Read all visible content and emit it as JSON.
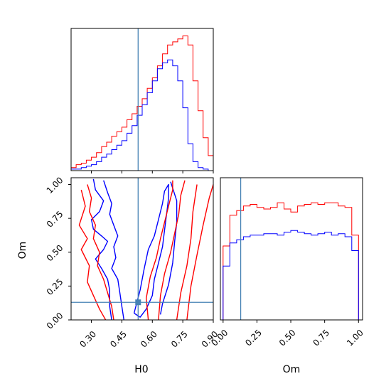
{
  "chart_data": {
    "type": "corner",
    "colors": {
      "red": "#ff0000",
      "blue": "#0000ff",
      "truth": "#4682b4"
    },
    "parameters": [
      "H0",
      "Om"
    ],
    "truth": {
      "H0": 0.53,
      "Om": 0.13
    },
    "panels": [
      {
        "id": "hist-H0",
        "type": "histogram-step",
        "xlim": [
          0.2,
          0.9
        ],
        "bin_edges": [
          0.2,
          0.225,
          0.25,
          0.275,
          0.3,
          0.325,
          0.35,
          0.375,
          0.4,
          0.425,
          0.45,
          0.475,
          0.5,
          0.525,
          0.55,
          0.575,
          0.6,
          0.625,
          0.65,
          0.675,
          0.7,
          0.725,
          0.75,
          0.775,
          0.8,
          0.825,
          0.85,
          0.875,
          0.9
        ],
        "series": [
          {
            "color": "red",
            "values": [
              2,
              4,
              5,
              7,
              9,
              12,
              16,
              19,
              23,
              26,
              29,
              34,
              38,
              43,
              48,
              55,
              62,
              70,
              78,
              84,
              86,
              88,
              90,
              84,
              60,
              40,
              22,
              10
            ]
          },
          {
            "color": "blue",
            "values": [
              1,
              1,
              2,
              3,
              4,
              6,
              9,
              11,
              14,
              17,
              20,
              25,
              30,
              37,
              44,
              52,
              60,
              68,
              72,
              74,
              70,
              60,
              42,
              18,
              6,
              2,
              1,
              0
            ]
          }
        ]
      },
      {
        "id": "hist-Om",
        "type": "histogram-step",
        "xlim": [
          0.0,
          1.0
        ],
        "bin_edges": [
          0.0,
          0.05,
          0.1,
          0.15,
          0.2,
          0.25,
          0.3,
          0.35,
          0.4,
          0.45,
          0.5,
          0.55,
          0.6,
          0.65,
          0.7,
          0.75,
          0.8,
          0.85,
          0.9,
          0.95,
          1.0
        ],
        "series": [
          {
            "color": "red",
            "values": [
              48,
              68,
              71,
              74,
              75,
              73,
              72,
              73,
              76,
              72,
              70,
              74,
              75,
              76,
              75,
              76,
              76,
              74,
              73,
              55
            ]
          },
          {
            "color": "blue",
            "values": [
              35,
              50,
              52,
              54,
              55,
              55,
              56,
              56,
              55,
              57,
              58,
              57,
              56,
              55,
              56,
              57,
              55,
              56,
              54,
              45
            ]
          }
        ]
      },
      {
        "id": "contour-H0-Om",
        "type": "contour",
        "xlabel": "H0",
        "ylabel": "Om",
        "xlim": [
          0.2,
          0.9
        ],
        "ylim": [
          0.0,
          1.05
        ],
        "xticks": [
          0.3,
          0.45,
          0.6,
          0.75,
          0.9
        ],
        "xtick_labels": [
          "0.30",
          "0.45",
          "0.60",
          "0.75",
          "0.90"
        ],
        "yticks": [
          0.0,
          0.25,
          0.5,
          0.75,
          1.0
        ],
        "ytick_labels": [
          "0.00",
          "0.25",
          "0.50",
          "0.75",
          "1.00"
        ],
        "contours": [
          {
            "color": "blue",
            "points": [
              [
                0.31,
                1.04
              ],
              [
                0.32,
                0.96
              ],
              [
                0.36,
                0.88
              ],
              [
                0.34,
                0.8
              ],
              [
                0.3,
                0.74
              ],
              [
                0.31,
                0.67
              ],
              [
                0.35,
                0.62
              ],
              [
                0.38,
                0.58
              ],
              [
                0.36,
                0.52
              ],
              [
                0.32,
                0.45
              ],
              [
                0.35,
                0.38
              ],
              [
                0.38,
                0.3
              ],
              [
                0.39,
                0.22
              ],
              [
                0.39,
                0.1
              ],
              [
                0.4,
                0.0
              ]
            ]
          },
          {
            "color": "blue",
            "points": [
              [
                0.36,
                1.03
              ],
              [
                0.38,
                0.94
              ],
              [
                0.4,
                0.86
              ],
              [
                0.39,
                0.78
              ],
              [
                0.41,
                0.7
              ],
              [
                0.43,
                0.62
              ],
              [
                0.41,
                0.54
              ],
              [
                0.42,
                0.46
              ],
              [
                0.4,
                0.38
              ],
              [
                0.43,
                0.3
              ],
              [
                0.44,
                0.2
              ],
              [
                0.45,
                0.1
              ],
              [
                0.46,
                0.0
              ]
            ]
          },
          {
            "color": "blue",
            "points": [
              [
                0.51,
                0.05
              ],
              [
                0.54,
                0.22
              ],
              [
                0.56,
                0.38
              ],
              [
                0.58,
                0.52
              ],
              [
                0.61,
                0.62
              ],
              [
                0.63,
                0.74
              ],
              [
                0.65,
                0.86
              ],
              [
                0.66,
                0.95
              ],
              [
                0.68,
                1.0
              ],
              [
                0.68,
                0.9
              ],
              [
                0.67,
                0.78
              ],
              [
                0.66,
                0.66
              ],
              [
                0.65,
                0.54
              ],
              [
                0.63,
                0.42
              ],
              [
                0.61,
                0.3
              ],
              [
                0.6,
                0.18
              ],
              [
                0.57,
                0.08
              ],
              [
                0.54,
                0.02
              ],
              [
                0.51,
                0.05
              ]
            ]
          },
          {
            "color": "blue",
            "points": [
              [
                0.69,
                1.02
              ],
              [
                0.72,
                0.88
              ],
              [
                0.72,
                0.72
              ],
              [
                0.71,
                0.58
              ],
              [
                0.7,
                0.42
              ],
              [
                0.68,
                0.26
              ],
              [
                0.65,
                0.12
              ],
              [
                0.64,
                0.04
              ]
            ]
          },
          {
            "color": "red",
            "points": [
              [
                0.25,
                0.96
              ],
              [
                0.27,
                0.84
              ],
              [
                0.24,
                0.7
              ],
              [
                0.28,
                0.6
              ],
              [
                0.25,
                0.52
              ],
              [
                0.29,
                0.4
              ],
              [
                0.28,
                0.28
              ],
              [
                0.31,
                0.18
              ],
              [
                0.34,
                0.08
              ],
              [
                0.37,
                0.0
              ]
            ]
          },
          {
            "color": "red",
            "points": [
              [
                0.28,
                1.0
              ],
              [
                0.3,
                0.9
              ],
              [
                0.29,
                0.8
              ],
              [
                0.32,
                0.7
              ],
              [
                0.31,
                0.6
              ],
              [
                0.34,
                0.5
              ],
              [
                0.33,
                0.4
              ],
              [
                0.36,
                0.3
              ],
              [
                0.38,
                0.2
              ],
              [
                0.4,
                0.1
              ],
              [
                0.41,
                0.0
              ]
            ]
          },
          {
            "color": "red",
            "points": [
              [
                0.58,
                0.0
              ],
              [
                0.57,
                0.16
              ],
              [
                0.59,
                0.32
              ],
              [
                0.62,
                0.46
              ],
              [
                0.64,
                0.6
              ],
              [
                0.66,
                0.72
              ],
              [
                0.68,
                0.84
              ],
              [
                0.7,
                0.96
              ],
              [
                0.7,
                1.03
              ]
            ]
          },
          {
            "color": "red",
            "points": [
              [
                0.63,
                0.0
              ],
              [
                0.64,
                0.18
              ],
              [
                0.66,
                0.34
              ],
              [
                0.69,
                0.5
              ],
              [
                0.71,
                0.64
              ],
              [
                0.73,
                0.78
              ],
              [
                0.74,
                0.92
              ],
              [
                0.76,
                1.03
              ]
            ]
          },
          {
            "color": "red",
            "points": [
              [
                0.72,
                0.0
              ],
              [
                0.74,
                0.2
              ],
              [
                0.77,
                0.4
              ],
              [
                0.79,
                0.6
              ],
              [
                0.8,
                0.8
              ],
              [
                0.82,
                1.0
              ]
            ]
          },
          {
            "color": "red",
            "points": [
              [
                0.77,
                0.0
              ],
              [
                0.79,
                0.25
              ],
              [
                0.82,
                0.48
              ],
              [
                0.85,
                0.7
              ],
              [
                0.88,
                0.9
              ],
              [
                0.9,
                1.0
              ]
            ]
          }
        ]
      }
    ],
    "om_xticks": [
      0.0,
      0.25,
      0.5,
      0.75,
      1.0
    ],
    "om_xtick_labels": [
      "0.00",
      "0.25",
      "0.50",
      "0.75",
      "1.00"
    ],
    "om_xlabel": "Om"
  }
}
